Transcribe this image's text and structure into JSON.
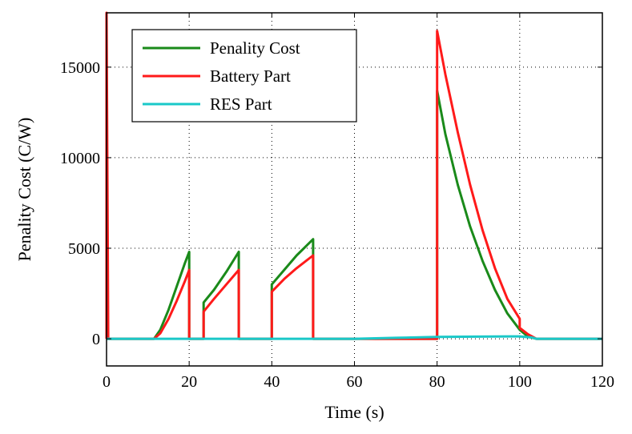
{
  "chart_data": {
    "type": "line",
    "xlabel": "Time (s)",
    "ylabel": "Penality Cost (C/W)",
    "xlim": [
      0,
      120
    ],
    "ylim": [
      -1500,
      18000
    ],
    "xticks": [
      0,
      20,
      40,
      60,
      80,
      100,
      120
    ],
    "yticks": [
      0,
      5000,
      10000,
      15000
    ],
    "xtick_labels": [
      "0",
      "20",
      "40",
      "60",
      "80",
      "100",
      "120"
    ],
    "ytick_labels": [
      "0",
      "5000",
      "10000",
      "15000"
    ],
    "grid": true,
    "legend_position": "top-left",
    "series": [
      {
        "name": "Penality Cost",
        "color": "#1a8a1a",
        "x": [
          0,
          11.5,
          13,
          15,
          17,
          19,
          20,
          20,
          23.5,
          23.5,
          26,
          29,
          32,
          32,
          40,
          40,
          43,
          46,
          50,
          50,
          60,
          80,
          80,
          82,
          85,
          88,
          91,
          94,
          97,
          100,
          102,
          104,
          120
        ],
        "y": [
          0,
          0,
          500,
          1600,
          2900,
          4200,
          4800,
          0,
          0,
          2000,
          2700,
          3700,
          4800,
          0,
          0,
          3000,
          3800,
          4600,
          5500,
          0,
          0,
          0,
          13700,
          11300,
          8500,
          6200,
          4300,
          2700,
          1400,
          500,
          120,
          0,
          0
        ]
      },
      {
        "name": "Battery Part",
        "color": "#ff1a1a",
        "x": [
          0,
          0,
          0.4,
          11.5,
          13,
          15,
          17,
          19,
          20,
          20,
          23.5,
          23.5,
          26,
          29,
          32,
          32,
          40,
          40,
          43,
          46,
          50,
          50,
          60,
          80,
          80,
          82,
          85,
          88,
          91,
          94,
          97,
          100,
          100,
          102,
          104,
          120
        ],
        "y": [
          0,
          18000,
          0,
          0,
          300,
          1100,
          2100,
          3200,
          3800,
          0,
          0,
          1500,
          2200,
          3000,
          3800,
          0,
          0,
          2600,
          3300,
          3900,
          4600,
          0,
          0,
          0,
          17000,
          14600,
          11400,
          8500,
          6000,
          3900,
          2200,
          1100,
          600,
          250,
          0,
          0
        ]
      },
      {
        "name": "RES Part",
        "color": "#1ac8c8",
        "x": [
          0,
          20,
          40,
          60,
          70,
          80,
          90,
          100,
          103,
          104,
          120
        ],
        "y": [
          0,
          0,
          0,
          0,
          50,
          100,
          120,
          130,
          70,
          0,
          0
        ]
      }
    ]
  }
}
